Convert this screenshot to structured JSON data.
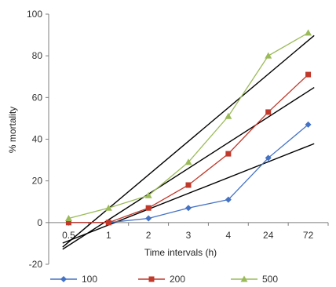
{
  "chart_data": {
    "type": "line",
    "xlabel": "Time intervals (h)",
    "ylabel": "% mortality",
    "categories": [
      "0.5",
      "1",
      "2",
      "3",
      "4",
      "24",
      "72"
    ],
    "ylim": [
      -20,
      100
    ],
    "yticks": [
      "-20",
      "0",
      "20",
      "40",
      "60",
      "80",
      "100"
    ],
    "grid": false,
    "legend_position": "bottom",
    "series": [
      {
        "name": "100",
        "color": "#4472c4",
        "marker": "diamond",
        "values": [
          0,
          0,
          2,
          7,
          11,
          31,
          47
        ]
      },
      {
        "name": "200",
        "color": "#c0392b",
        "marker": "square",
        "values": [
          0,
          0,
          7,
          18,
          33,
          53,
          71
        ]
      },
      {
        "name": "500",
        "color": "#9bbb59",
        "marker": "triangle",
        "values": [
          2,
          7,
          13,
          29,
          51,
          80,
          91
        ]
      }
    ],
    "trendlines": [
      {
        "series": "100",
        "type": "linear",
        "color": "#000000"
      },
      {
        "series": "200",
        "type": "linear",
        "color": "#000000"
      },
      {
        "series": "500",
        "type": "linear",
        "color": "#000000"
      }
    ]
  }
}
